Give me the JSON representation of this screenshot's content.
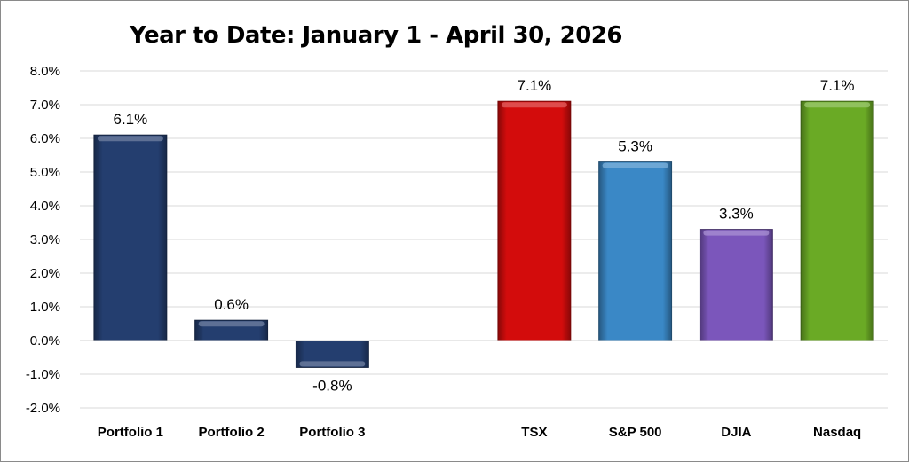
{
  "chart_data": {
    "type": "bar",
    "title": "Year to Date: January 1 - April 30, 2026",
    "categories": [
      "Portfolio 1",
      "Portfolio 2",
      "Portfolio 3",
      "",
      "TSX",
      "S&P 500",
      "DJIA",
      "Nasdaq"
    ],
    "values": [
      6.1,
      0.6,
      -0.8,
      null,
      7.1,
      5.3,
      3.3,
      7.1
    ],
    "data_labels": [
      "6.1%",
      "0.6%",
      "-0.8%",
      "",
      "7.1%",
      "5.3%",
      "3.3%",
      "7.1%"
    ],
    "colors": [
      "#243e6f",
      "#243e6f",
      "#243e6f",
      "",
      "#d30c0c",
      "#3a88c6",
      "#7b56bb",
      "#6aaa25"
    ],
    "ylim": [
      -2.0,
      8.0
    ],
    "yticks": [
      "-2.0%",
      "-1.0%",
      "0.0%",
      "1.0%",
      "2.0%",
      "3.0%",
      "4.0%",
      "5.0%",
      "6.0%",
      "7.0%",
      "8.0%"
    ],
    "ytick_values": [
      -2,
      -1,
      0,
      1,
      2,
      3,
      4,
      5,
      6,
      7,
      8
    ],
    "grid": true,
    "xlabel": "",
    "ylabel": ""
  }
}
